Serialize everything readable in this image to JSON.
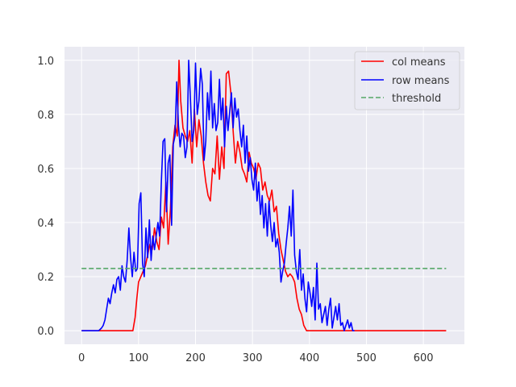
{
  "chart_data": {
    "type": "line",
    "xlim": [
      -30,
      672
    ],
    "ylim": [
      -0.05,
      1.05
    ],
    "xticks": [
      0,
      100,
      200,
      300,
      400,
      500,
      600
    ],
    "yticks": [
      0.0,
      0.2,
      0.4,
      0.6,
      0.8,
      1.0
    ],
    "xtick_labels": [
      "0",
      "100",
      "200",
      "300",
      "400",
      "500",
      "600"
    ],
    "ytick_labels": [
      "0.0",
      "0.2",
      "0.4",
      "0.6",
      "0.8",
      "1.0"
    ],
    "grid": true,
    "legend_position": "top-right",
    "colors": {
      "background": "#eaeaf2",
      "grid": "#ffffff",
      "col_means": "#ff0000",
      "row_means": "#0000ff",
      "threshold": "#55a868"
    },
    "series": [
      {
        "name": "col means",
        "style": "solid",
        "x": [
          0,
          90,
          94,
          97,
          100,
          104,
          108,
          112,
          116,
          120,
          124,
          128,
          132,
          136,
          140,
          144,
          148,
          152,
          156,
          160,
          164,
          168,
          171,
          174,
          178,
          182,
          186,
          190,
          194,
          198,
          202,
          206,
          210,
          214,
          218,
          222,
          226,
          230,
          234,
          238,
          242,
          246,
          250,
          254,
          258,
          262,
          266,
          270,
          274,
          278,
          282,
          286,
          290,
          294,
          298,
          302,
          306,
          310,
          314,
          318,
          322,
          326,
          330,
          334,
          338,
          342,
          346,
          350,
          354,
          358,
          362,
          366,
          370,
          374,
          378,
          382,
          386,
          390,
          395,
          640
        ],
        "y": [
          0,
          0,
          0.05,
          0.12,
          0.18,
          0.2,
          0.22,
          0.24,
          0.28,
          0.32,
          0.3,
          0.38,
          0.33,
          0.3,
          0.42,
          0.38,
          0.55,
          0.32,
          0.45,
          0.68,
          0.76,
          0.72,
          1.0,
          0.85,
          0.75,
          0.72,
          0.7,
          0.74,
          0.62,
          0.82,
          0.68,
          0.78,
          0.72,
          0.62,
          0.55,
          0.5,
          0.48,
          0.6,
          0.58,
          0.72,
          0.56,
          0.68,
          0.6,
          0.95,
          0.96,
          0.88,
          0.74,
          0.62,
          0.7,
          0.66,
          0.6,
          0.58,
          0.55,
          0.66,
          0.62,
          0.6,
          0.56,
          0.62,
          0.6,
          0.52,
          0.55,
          0.5,
          0.48,
          0.52,
          0.44,
          0.46,
          0.36,
          0.3,
          0.26,
          0.22,
          0.2,
          0.21,
          0.2,
          0.18,
          0.12,
          0.08,
          0.06,
          0.02,
          0,
          0
        ]
      },
      {
        "name": "row means",
        "style": "solid",
        "x": [
          0,
          30,
          35,
          38,
          41,
          44,
          47,
          50,
          53,
          56,
          59,
          62,
          65,
          68,
          71,
          74,
          77,
          80,
          83,
          86,
          89,
          92,
          95,
          98,
          101,
          104,
          107,
          110,
          113,
          116,
          119,
          122,
          125,
          128,
          131,
          134,
          137,
          140,
          143,
          146,
          149,
          152,
          155,
          158,
          161,
          164,
          167,
          170,
          173,
          176,
          179,
          182,
          185,
          188,
          191,
          194,
          197,
          200,
          203,
          206,
          209,
          212,
          215,
          218,
          221,
          224,
          227,
          230,
          233,
          236,
          239,
          242,
          245,
          248,
          251,
          254,
          257,
          260,
          263,
          266,
          269,
          272,
          275,
          278,
          281,
          284,
          287,
          290,
          293,
          296,
          299,
          302,
          305,
          308,
          311,
          314,
          317,
          320,
          323,
          326,
          329,
          332,
          335,
          338,
          341,
          344,
          347,
          350,
          353,
          356,
          359,
          362,
          365,
          368,
          371,
          374,
          377,
          380,
          383,
          386,
          389,
          392,
          395,
          398,
          401,
          404,
          407,
          410,
          413,
          416,
          419,
          422,
          425,
          428,
          431,
          434,
          437,
          440,
          443,
          446,
          449,
          452,
          455,
          458,
          461,
          464,
          467,
          470,
          473,
          476,
          479
        ],
        "y": [
          0,
          0,
          0.01,
          0.02,
          0.04,
          0.08,
          0.12,
          0.1,
          0.14,
          0.17,
          0.14,
          0.19,
          0.2,
          0.15,
          0.24,
          0.2,
          0.18,
          0.26,
          0.38,
          0.27,
          0.2,
          0.29,
          0.22,
          0.23,
          0.47,
          0.51,
          0.25,
          0.2,
          0.38,
          0.27,
          0.41,
          0.26,
          0.35,
          0.3,
          0.35,
          0.4,
          0.35,
          0.55,
          0.7,
          0.71,
          0.44,
          0.62,
          0.65,
          0.39,
          0.69,
          0.72,
          0.92,
          0.76,
          0.68,
          0.73,
          0.72,
          0.64,
          0.68,
          1.0,
          0.86,
          0.7,
          0.74,
          0.99,
          0.8,
          0.85,
          0.97,
          0.91,
          0.63,
          0.7,
          0.88,
          0.78,
          0.96,
          0.75,
          0.84,
          0.74,
          0.77,
          0.93,
          0.78,
          0.86,
          0.68,
          0.83,
          0.74,
          0.81,
          0.88,
          0.75,
          0.86,
          0.79,
          0.82,
          0.74,
          0.68,
          0.76,
          0.62,
          0.72,
          0.59,
          0.64,
          0.56,
          0.52,
          0.62,
          0.48,
          0.55,
          0.43,
          0.5,
          0.38,
          0.47,
          0.35,
          0.48,
          0.39,
          0.33,
          0.4,
          0.31,
          0.34,
          0.29,
          0.18,
          0.22,
          0.25,
          0.32,
          0.38,
          0.46,
          0.35,
          0.52,
          0.28,
          0.22,
          0.19,
          0.3,
          0.15,
          0.21,
          0.12,
          0.07,
          0.18,
          0.14,
          0.09,
          0.16,
          0.04,
          0.25,
          0.08,
          0.1,
          0.03,
          0.06,
          0.09,
          0.02,
          0.08,
          0.12,
          0.01,
          0.05,
          0.09,
          0.04,
          0.1,
          0.02,
          0.03,
          0.0,
          0.02,
          0.04,
          0.01,
          0.03,
          0.0,
          0.0
        ]
      },
      {
        "name": "threshold",
        "style": "dashed",
        "x": [
          0,
          640
        ],
        "y": [
          0.23,
          0.23
        ]
      }
    ]
  }
}
